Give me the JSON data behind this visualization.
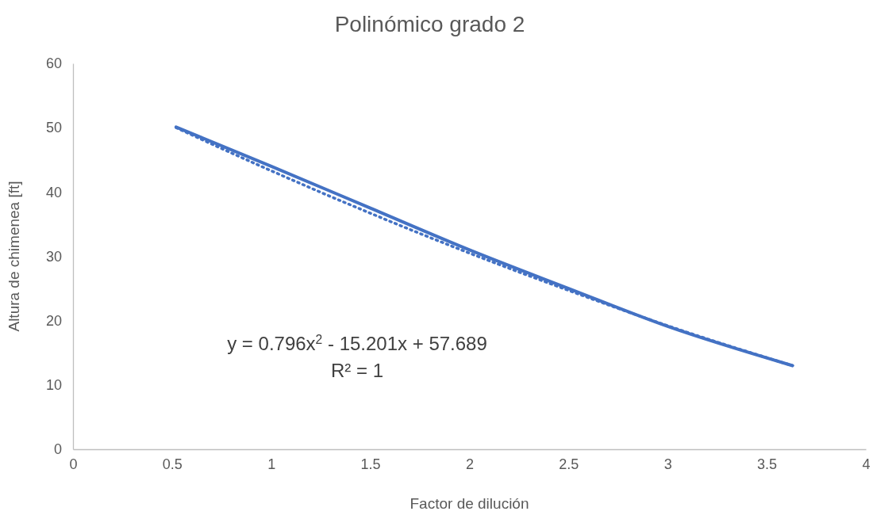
{
  "chart_data": {
    "type": "line",
    "title": "Polinómico grado 2",
    "xlabel": "Factor de dilución",
    "ylabel": "Altura de chimenea [ft]",
    "series": [
      {
        "color": "#4472c4",
        "x": [
          0.52,
          1,
          1.5,
          2,
          2.5,
          3,
          3.63
        ],
        "values": [
          50.1,
          44.0,
          37.5,
          31.0,
          25.0,
          19.1,
          13.0
        ],
        "line_style": "solid"
      },
      {
        "color": "#4472c4",
        "x": [
          0.52,
          1,
          1.5,
          2,
          2.5,
          3,
          3.63
        ],
        "values": [
          50.0,
          43.3,
          36.7,
          30.5,
          24.7,
          19.2,
          13.0
        ],
        "line_style": "dotted"
      }
    ],
    "xlim": [
      0,
      4
    ],
    "xticks": [
      0,
      0.5,
      1,
      1.5,
      2,
      2.5,
      3,
      3.5,
      4
    ],
    "ylim": [
      0,
      60
    ],
    "yticks": [
      0,
      10,
      20,
      30,
      40,
      50,
      60
    ],
    "grid": false,
    "marker": "none",
    "annotations": [
      "y = 0.796x$^{2}$ - 15.201x + 57.689",
      "R² = 1"
    ]
  }
}
